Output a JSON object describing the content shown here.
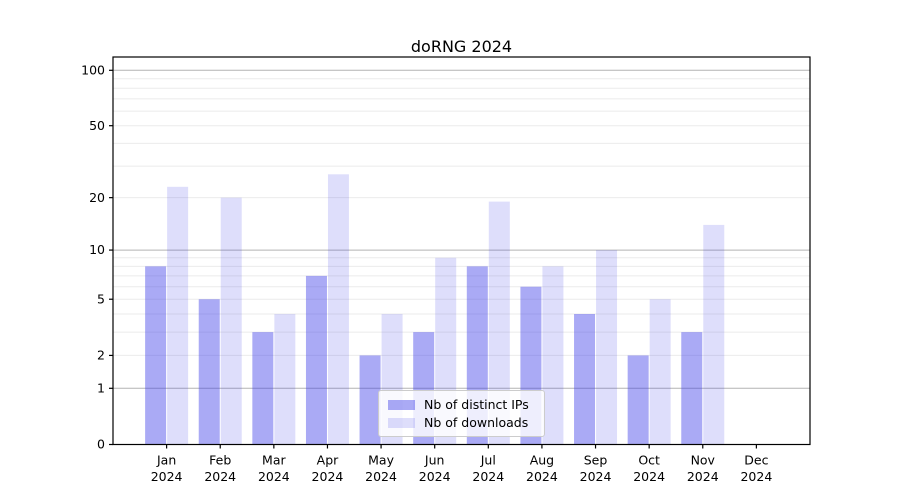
{
  "chart_data": {
    "type": "bar",
    "title": "doRNG 2024",
    "categories": [
      [
        "Jan",
        "2024"
      ],
      [
        "Feb",
        "2024"
      ],
      [
        "Mar",
        "2024"
      ],
      [
        "Apr",
        "2024"
      ],
      [
        "May",
        "2024"
      ],
      [
        "Jun",
        "2024"
      ],
      [
        "Jul",
        "2024"
      ],
      [
        "Aug",
        "2024"
      ],
      [
        "Sep",
        "2024"
      ],
      [
        "Oct",
        "2024"
      ],
      [
        "Nov",
        "2024"
      ],
      [
        "Dec",
        "2024"
      ]
    ],
    "series": [
      {
        "key": "distinct-ips",
        "name": "Nb of distinct IPs",
        "color": "rgba(62,62,232,0.44)",
        "values": [
          8,
          5,
          3,
          7,
          2,
          3,
          8,
          6,
          4,
          2,
          3,
          0
        ]
      },
      {
        "key": "downloads",
        "name": "Nb of downloads",
        "color": "rgba(62,62,232,0.17)",
        "values": [
          23,
          20,
          4,
          27,
          4,
          9,
          19,
          8,
          10,
          5,
          14,
          0
        ]
      }
    ],
    "y_axis": {
      "scale": "log1p",
      "ticks": [
        0,
        1,
        2,
        5,
        10,
        20,
        50,
        100
      ],
      "major_gridlines": [
        1,
        10,
        100
      ],
      "minor_gridlines": [
        2,
        3,
        4,
        5,
        6,
        7,
        8,
        9,
        20,
        30,
        40,
        50,
        60,
        70,
        80,
        90
      ],
      "range": [
        0,
        118
      ]
    },
    "xlabel": "",
    "ylabel": "",
    "grid": true,
    "legend_position": "lower center"
  },
  "colors": {
    "bar_dark": "#a8a8f2",
    "bar_light": "#dadaf8",
    "grid_minor": "#ebebeb",
    "grid_major": "#b3b3b3",
    "axis": "#000000",
    "text": "#000000",
    "legend_border": "#cccccc"
  }
}
